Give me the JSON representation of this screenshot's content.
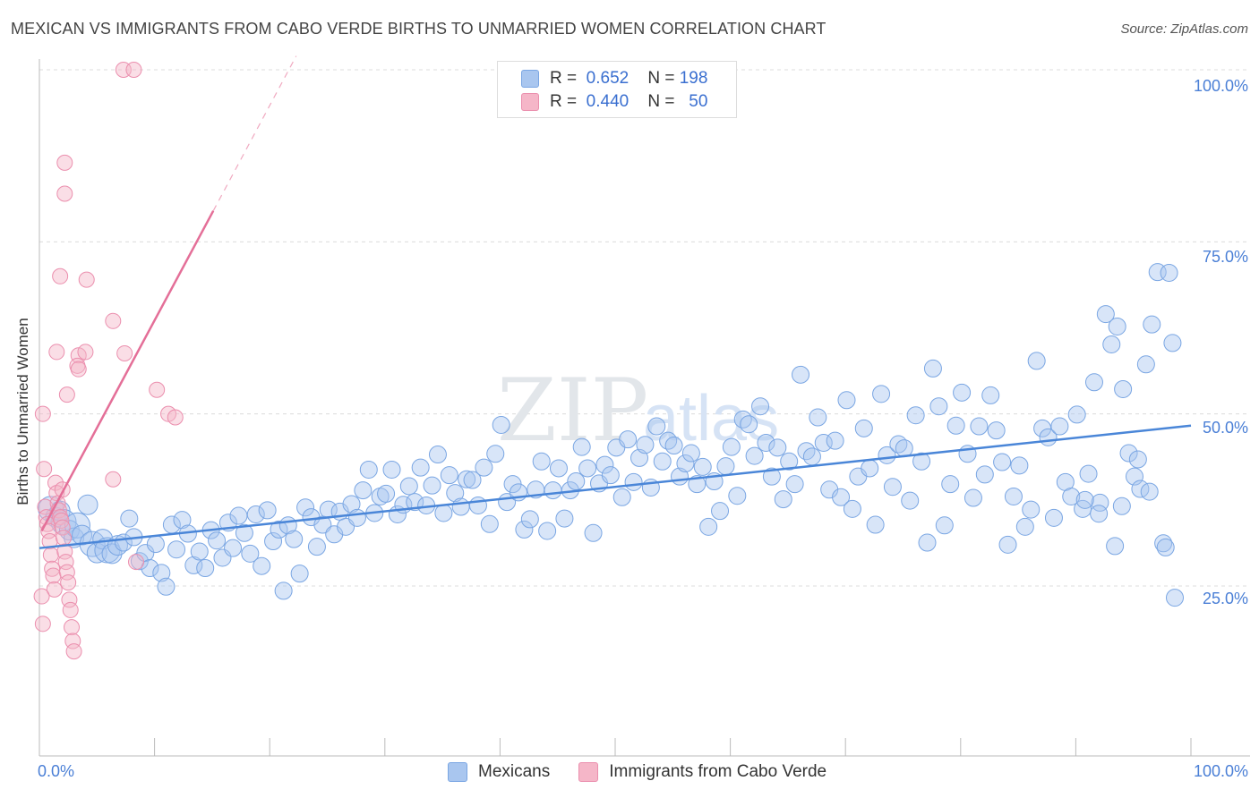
{
  "header": {
    "title": "MEXICAN VS IMMIGRANTS FROM CABO VERDE BIRTHS TO UNMARRIED WOMEN CORRELATION CHART",
    "source": "Source: ZipAtlas.com"
  },
  "watermark": {
    "zip": "ZIP",
    "atlas": "atlas"
  },
  "legend_top": {
    "rows": [
      {
        "r_label": "R =",
        "r_value": "0.652",
        "n_label": "N =",
        "n_value": "198",
        "color": "#a9c6ef"
      },
      {
        "r_label": "R =",
        "r_value": "0.440",
        "n_label": "N =",
        "n_value": "50",
        "color": "#f5b6c8"
      }
    ]
  },
  "legend_bottom": [
    {
      "label": "Mexicans",
      "color": "#a9c6ef"
    },
    {
      "label": "Immigrants from Cabo Verde",
      "color": "#f5b6c8"
    }
  ],
  "chart_data": {
    "type": "scatter",
    "title": "MEXICAN VS IMMIGRANTS FROM CABO VERDE BIRTHS TO UNMARRIED WOMEN CORRELATION CHART",
    "xlabel": "",
    "ylabel": "Births to Unmarried Women",
    "xlim": [
      0,
      100
    ],
    "ylim": [
      10,
      105
    ],
    "x_tick_labels": [
      "0.0%",
      "100.0%"
    ],
    "y_ticks": [
      25,
      50,
      75,
      100
    ],
    "y_tick_labels": [
      "25.0%",
      "50.0%",
      "75.0%",
      "100.0%"
    ],
    "grid": true,
    "legend_position": "top-center",
    "colors": {
      "mexicans": "#4a86d8",
      "cabo_verde": "#e46f98",
      "mexicans_fill": "#a9c6ef",
      "cabo_verde_fill": "#f5b6c8"
    },
    "series": [
      {
        "name": "Mexicans",
        "r": 0.652,
        "n": 198,
        "trend": {
          "x": [
            0,
            100
          ],
          "y": [
            30.5,
            48.3
          ]
        },
        "points": [
          [
            1.0,
            36.2
          ],
          [
            1.4,
            35.0
          ],
          [
            1.8,
            35.9
          ],
          [
            2.1,
            34.3
          ],
          [
            2.6,
            33.1
          ],
          [
            3.0,
            32.0
          ],
          [
            3.3,
            33.8
          ],
          [
            3.7,
            32.4
          ],
          [
            4.2,
            36.8
          ],
          [
            4.6,
            31.1
          ],
          [
            5.0,
            29.8
          ],
          [
            5.5,
            31.8
          ],
          [
            5.9,
            30.2
          ],
          [
            6.3,
            29.7
          ],
          [
            6.8,
            30.9
          ],
          [
            7.3,
            31.3
          ],
          [
            7.8,
            34.8
          ],
          [
            8.2,
            32.1
          ],
          [
            8.7,
            28.6
          ],
          [
            9.2,
            29.8
          ],
          [
            9.6,
            27.6
          ],
          [
            10.1,
            31.1
          ],
          [
            10.6,
            26.9
          ],
          [
            11.0,
            24.9
          ],
          [
            11.5,
            33.9
          ],
          [
            11.9,
            30.3
          ],
          [
            12.4,
            34.6
          ],
          [
            12.9,
            32.6
          ],
          [
            13.4,
            28.0
          ],
          [
            13.9,
            30.0
          ],
          [
            14.4,
            27.6
          ],
          [
            14.9,
            33.1
          ],
          [
            15.4,
            31.6
          ],
          [
            15.9,
            29.1
          ],
          [
            16.4,
            34.2
          ],
          [
            16.8,
            30.5
          ],
          [
            17.3,
            35.2
          ],
          [
            17.8,
            32.7
          ],
          [
            18.3,
            29.7
          ],
          [
            18.8,
            35.4
          ],
          [
            19.3,
            27.9
          ],
          [
            19.8,
            36.0
          ],
          [
            20.3,
            31.5
          ],
          [
            20.8,
            33.2
          ],
          [
            21.2,
            24.3
          ],
          [
            21.6,
            33.8
          ],
          [
            22.1,
            31.8
          ],
          [
            22.6,
            26.8
          ],
          [
            23.1,
            36.4
          ],
          [
            23.6,
            35.0
          ],
          [
            24.1,
            30.7
          ],
          [
            24.6,
            33.9
          ],
          [
            25.1,
            36.1
          ],
          [
            25.6,
            32.5
          ],
          [
            26.1,
            35.8
          ],
          [
            26.6,
            33.6
          ],
          [
            27.1,
            36.9
          ],
          [
            27.6,
            34.9
          ],
          [
            28.1,
            38.9
          ],
          [
            28.6,
            41.9
          ],
          [
            29.1,
            35.6
          ],
          [
            29.6,
            38.0
          ],
          [
            30.1,
            38.4
          ],
          [
            30.6,
            41.9
          ],
          [
            31.1,
            35.4
          ],
          [
            31.6,
            36.8
          ],
          [
            32.1,
            39.5
          ],
          [
            32.6,
            37.2
          ],
          [
            33.1,
            42.2
          ],
          [
            33.6,
            36.7
          ],
          [
            34.1,
            39.6
          ],
          [
            34.6,
            44.1
          ],
          [
            35.1,
            35.6
          ],
          [
            35.6,
            41.1
          ],
          [
            36.1,
            38.5
          ],
          [
            36.6,
            36.5
          ],
          [
            37.1,
            40.5
          ],
          [
            37.6,
            40.4
          ],
          [
            38.1,
            36.7
          ],
          [
            38.6,
            42.2
          ],
          [
            39.1,
            34.0
          ],
          [
            39.6,
            44.2
          ],
          [
            40.1,
            48.4
          ],
          [
            40.6,
            37.2
          ],
          [
            41.1,
            39.8
          ],
          [
            41.6,
            38.6
          ],
          [
            42.1,
            33.2
          ],
          [
            42.6,
            34.7
          ],
          [
            43.1,
            39.0
          ],
          [
            43.6,
            43.1
          ],
          [
            44.1,
            33.0
          ],
          [
            44.6,
            38.9
          ],
          [
            45.1,
            42.1
          ],
          [
            45.6,
            34.8
          ],
          [
            46.1,
            38.9
          ],
          [
            46.6,
            40.2
          ],
          [
            47.1,
            45.2
          ],
          [
            47.6,
            42.1
          ],
          [
            48.1,
            32.7
          ],
          [
            48.6,
            39.9
          ],
          [
            49.1,
            42.6
          ],
          [
            49.6,
            41.1
          ],
          [
            50.1,
            45.1
          ],
          [
            50.6,
            37.9
          ],
          [
            51.1,
            46.3
          ],
          [
            51.6,
            40.1
          ],
          [
            52.1,
            43.6
          ],
          [
            52.6,
            45.5
          ],
          [
            53.1,
            39.3
          ],
          [
            53.6,
            48.2
          ],
          [
            54.1,
            43.1
          ],
          [
            54.6,
            46.1
          ],
          [
            55.1,
            45.4
          ],
          [
            55.6,
            40.9
          ],
          [
            56.1,
            42.8
          ],
          [
            56.6,
            44.3
          ],
          [
            57.1,
            39.8
          ],
          [
            57.6,
            42.3
          ],
          [
            58.1,
            33.6
          ],
          [
            58.6,
            40.2
          ],
          [
            59.1,
            35.9
          ],
          [
            59.6,
            42.4
          ],
          [
            60.1,
            45.2
          ],
          [
            60.6,
            38.1
          ],
          [
            61.1,
            49.2
          ],
          [
            61.6,
            48.5
          ],
          [
            62.1,
            43.9
          ],
          [
            62.6,
            51.1
          ],
          [
            63.1,
            45.8
          ],
          [
            63.6,
            40.9
          ],
          [
            64.1,
            45.1
          ],
          [
            64.6,
            37.6
          ],
          [
            65.1,
            43.1
          ],
          [
            65.6,
            39.8
          ],
          [
            66.1,
            55.7
          ],
          [
            66.6,
            44.6
          ],
          [
            67.1,
            43.8
          ],
          [
            67.6,
            49.5
          ],
          [
            68.1,
            45.8
          ],
          [
            68.6,
            39.0
          ],
          [
            69.1,
            46.1
          ],
          [
            69.6,
            37.9
          ],
          [
            70.1,
            52.0
          ],
          [
            70.6,
            36.2
          ],
          [
            71.1,
            40.9
          ],
          [
            71.6,
            47.9
          ],
          [
            72.1,
            42.1
          ],
          [
            72.6,
            33.9
          ],
          [
            73.1,
            52.9
          ],
          [
            73.6,
            44.0
          ],
          [
            74.1,
            39.4
          ],
          [
            74.6,
            45.6
          ],
          [
            75.1,
            45.0
          ],
          [
            75.6,
            37.4
          ],
          [
            76.1,
            49.8
          ],
          [
            76.6,
            43.1
          ],
          [
            77.1,
            31.3
          ],
          [
            77.6,
            56.6
          ],
          [
            78.1,
            51.1
          ],
          [
            78.6,
            33.8
          ],
          [
            79.1,
            39.8
          ],
          [
            79.6,
            48.3
          ],
          [
            80.1,
            53.1
          ],
          [
            80.6,
            44.2
          ],
          [
            81.1,
            37.8
          ],
          [
            81.6,
            48.2
          ],
          [
            82.1,
            41.2
          ],
          [
            82.6,
            52.7
          ],
          [
            83.1,
            47.6
          ],
          [
            83.6,
            43.0
          ],
          [
            84.1,
            31.0
          ],
          [
            84.6,
            38.0
          ],
          [
            85.1,
            42.5
          ],
          [
            85.6,
            33.6
          ],
          [
            86.1,
            36.1
          ],
          [
            86.6,
            57.7
          ],
          [
            87.1,
            47.9
          ],
          [
            87.6,
            46.6
          ],
          [
            88.1,
            34.9
          ],
          [
            88.6,
            48.2
          ],
          [
            89.1,
            40.1
          ],
          [
            89.6,
            38.0
          ],
          [
            90.1,
            49.9
          ],
          [
            90.6,
            36.2
          ],
          [
            91.1,
            41.3
          ],
          [
            91.6,
            54.6
          ],
          [
            92.1,
            37.1
          ],
          [
            92.6,
            64.5
          ],
          [
            93.1,
            60.1
          ],
          [
            93.6,
            62.7
          ],
          [
            94.1,
            53.6
          ],
          [
            94.6,
            44.3
          ],
          [
            95.1,
            40.9
          ],
          [
            95.6,
            39.1
          ],
          [
            96.1,
            57.2
          ],
          [
            96.6,
            63.0
          ],
          [
            97.1,
            70.6
          ],
          [
            97.6,
            31.2
          ],
          [
            98.1,
            70.5
          ],
          [
            98.6,
            23.3
          ],
          [
            90.8,
            37.5
          ],
          [
            92.0,
            35.5
          ],
          [
            93.4,
            30.8
          ],
          [
            94.0,
            36.6
          ],
          [
            95.4,
            43.4
          ],
          [
            96.4,
            38.7
          ],
          [
            97.8,
            30.6
          ],
          [
            98.4,
            60.3
          ]
        ]
      },
      {
        "name": "Immigrants from Cabo Verde",
        "r": 0.44,
        "n": 50,
        "trend": {
          "x": [
            0.2,
            15.1
          ],
          "y": [
            33.0,
            79.5
          ]
        },
        "trend_extension": {
          "x": [
            15.1,
            22.3
          ],
          "y": [
            79.5,
            102.0
          ]
        },
        "points": [
          [
            0.3,
            50.0
          ],
          [
            0.4,
            42.0
          ],
          [
            0.5,
            36.5
          ],
          [
            0.6,
            35.0
          ],
          [
            0.7,
            34.0
          ],
          [
            0.8,
            33.0
          ],
          [
            0.9,
            31.5
          ],
          [
            1.0,
            29.5
          ],
          [
            1.1,
            27.5
          ],
          [
            1.2,
            26.5
          ],
          [
            1.3,
            24.5
          ],
          [
            1.4,
            40.0
          ],
          [
            1.5,
            38.5
          ],
          [
            1.6,
            37.0
          ],
          [
            1.7,
            36.0
          ],
          [
            1.8,
            35.0
          ],
          [
            1.9,
            34.5
          ],
          [
            2.0,
            33.5
          ],
          [
            2.1,
            32.0
          ],
          [
            2.2,
            30.0
          ],
          [
            2.3,
            28.5
          ],
          [
            2.4,
            27.0
          ],
          [
            2.5,
            25.5
          ],
          [
            2.6,
            23.0
          ],
          [
            2.7,
            21.5
          ],
          [
            2.8,
            19.0
          ],
          [
            2.9,
            17.0
          ],
          [
            3.0,
            15.5
          ],
          [
            0.2,
            23.5
          ],
          [
            0.3,
            19.5
          ],
          [
            7.3,
            100.0
          ],
          [
            8.2,
            100.0
          ],
          [
            2.2,
            86.5
          ],
          [
            2.2,
            82.0
          ],
          [
            1.8,
            70.0
          ],
          [
            4.1,
            69.5
          ],
          [
            6.4,
            63.5
          ],
          [
            1.5,
            59.0
          ],
          [
            3.4,
            58.5
          ],
          [
            4.0,
            59.0
          ],
          [
            7.4,
            58.8
          ],
          [
            3.3,
            57.0
          ],
          [
            3.4,
            56.5
          ],
          [
            2.4,
            52.8
          ],
          [
            10.2,
            53.5
          ],
          [
            11.2,
            50.0
          ],
          [
            11.8,
            49.5
          ],
          [
            6.4,
            40.5
          ],
          [
            2.0,
            39.0
          ],
          [
            8.4,
            28.5
          ]
        ]
      }
    ]
  }
}
